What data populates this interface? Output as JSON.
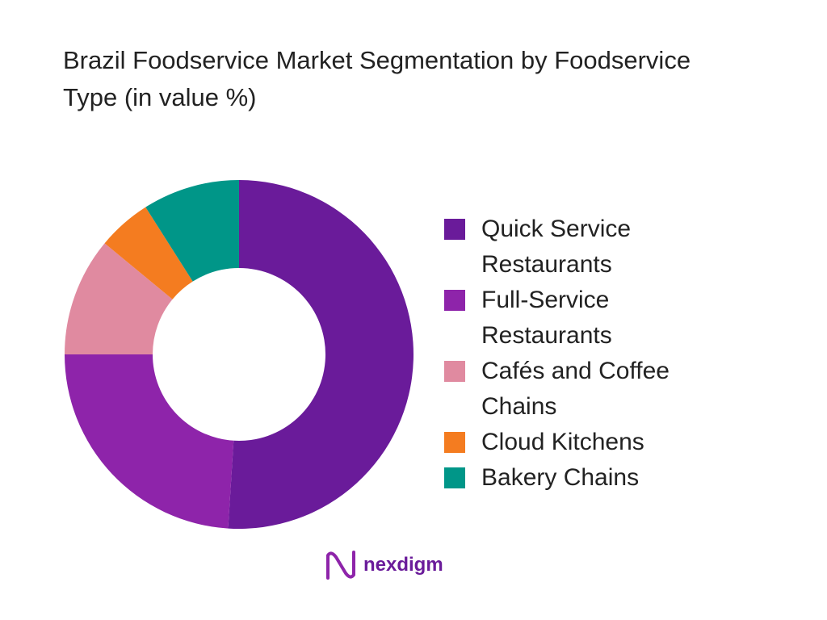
{
  "chart_data": {
    "type": "donut",
    "title": "Brazil Foodservice Market Segmentation by Foodservice Type (in value %)",
    "categories": [
      "Quick Service Restaurants",
      "Full-Service Restaurants",
      "Cafés and Coffee Chains",
      "Cloud Kitchens",
      "Bakery Chains"
    ],
    "values": [
      51,
      24,
      11,
      5,
      9
    ],
    "colors": [
      "#6a1b9a",
      "#8e24aa",
      "#e08aa0",
      "#f47c20",
      "#009688"
    ],
    "legend": "right"
  },
  "logo": "nexdigm"
}
